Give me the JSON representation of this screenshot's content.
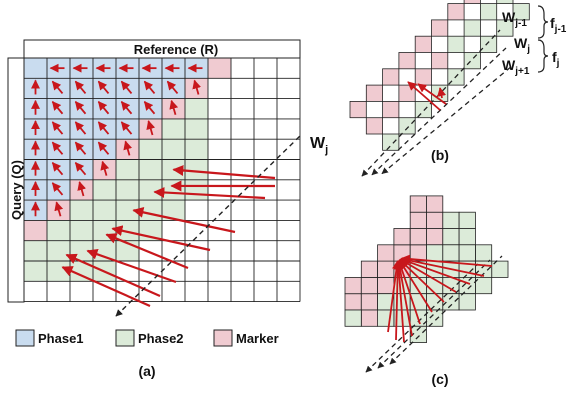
{
  "colors": {
    "phase1": "#c9dcef",
    "phase2": "#dcebd9",
    "marker": "#f0cbd1",
    "arrow": "#c8171c",
    "grid": "#222222",
    "dash": "#222222"
  },
  "panel_a": {
    "reference_label": "Reference (R)",
    "query_label": "Query (Q)",
    "wavefront_label": "W",
    "wavefront_sub": "j",
    "caption": "(a)"
  },
  "panel_b": {
    "w_prev": "W",
    "w_prev_sub": "j-1",
    "w_cur": "W",
    "w_cur_sub": "j",
    "w_next": "W",
    "w_next_sub": "j+1",
    "f_prev": "f",
    "f_prev_sub": "j-1",
    "f_cur": "f",
    "f_cur_sub": "j",
    "caption": "(b)"
  },
  "panel_c": {
    "caption": "(c)"
  },
  "legend": [
    {
      "label": "Phase1",
      "color_key": "phase1"
    },
    {
      "label": "Phase2",
      "color_key": "phase2"
    },
    {
      "label": "Marker",
      "color_key": "marker"
    }
  ]
}
